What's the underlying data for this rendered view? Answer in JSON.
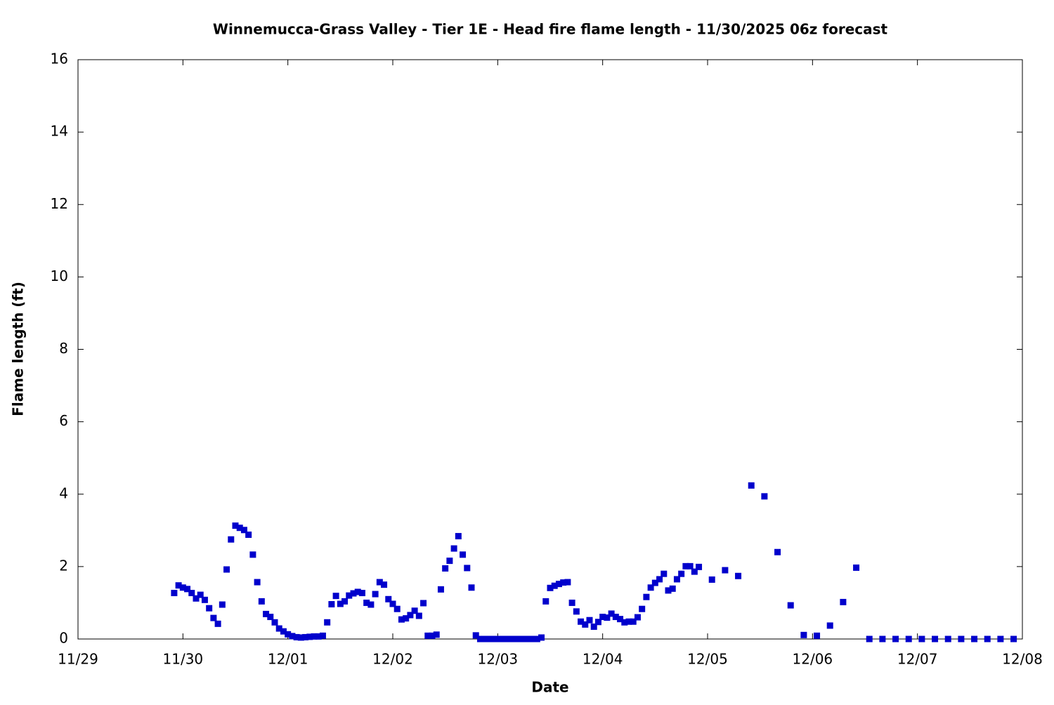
{
  "chart_data": {
    "type": "scatter",
    "title": "Winnemucca-Grass Valley - Tier 1E - Head fire flame length - 11/30/2025 06z forecast",
    "xlabel": "Date",
    "ylabel": "Flame length (ft)",
    "color": "#0000cc",
    "xlim": [
      0,
      216
    ],
    "xticks": [
      {
        "value": 0,
        "label": "11/29"
      },
      {
        "value": 24,
        "label": "11/30"
      },
      {
        "value": 48,
        "label": "12/01"
      },
      {
        "value": 72,
        "label": "12/02"
      },
      {
        "value": 96,
        "label": "12/03"
      },
      {
        "value": 120,
        "label": "12/04"
      },
      {
        "value": 144,
        "label": "12/05"
      },
      {
        "value": 168,
        "label": "12/06"
      },
      {
        "value": 192,
        "label": "12/07"
      },
      {
        "value": 216,
        "label": "12/08"
      }
    ],
    "ylim": [
      0,
      16
    ],
    "yticks": [
      0,
      2,
      4,
      6,
      8,
      10,
      12,
      14,
      16
    ],
    "x": [
      22,
      23,
      24,
      25,
      26,
      27,
      28,
      29,
      30,
      31,
      32,
      33,
      34,
      35,
      36,
      37,
      38,
      39,
      40,
      41,
      42,
      43,
      44,
      45,
      46,
      47,
      48,
      49,
      50,
      51,
      52,
      53,
      54,
      55,
      56,
      57,
      58,
      59,
      60,
      61,
      62,
      63,
      64,
      65,
      66,
      67,
      68,
      69,
      70,
      71,
      72,
      73,
      74,
      75,
      76,
      77,
      78,
      79,
      80,
      81,
      82,
      83,
      84,
      85,
      86,
      87,
      88,
      89,
      90,
      91,
      92,
      93,
      94,
      95,
      96,
      97,
      98,
      99,
      100,
      101,
      102,
      103,
      104,
      105,
      106,
      107,
      108,
      109,
      110,
      111,
      112,
      113,
      114,
      115,
      116,
      117,
      118,
      119,
      120,
      121,
      122,
      123,
      124,
      125,
      126,
      127,
      128,
      129,
      130,
      131,
      132,
      133,
      134,
      135,
      136,
      137,
      138,
      139,
      140,
      141,
      142,
      145,
      148,
      151,
      154,
      157,
      160,
      163,
      166,
      169,
      172,
      175,
      178,
      181,
      184,
      187,
      190,
      193,
      196,
      199,
      202,
      205,
      208,
      211,
      214
    ],
    "values": [
      1.27,
      1.48,
      1.42,
      1.38,
      1.27,
      1.12,
      1.22,
      1.08,
      0.85,
      0.58,
      0.42,
      0.95,
      1.92,
      2.75,
      3.13,
      3.07,
      3.01,
      2.88,
      2.33,
      1.57,
      1.04,
      0.69,
      0.61,
      0.46,
      0.29,
      0.21,
      0.13,
      0.08,
      0.05,
      0.04,
      0.05,
      0.06,
      0.07,
      0.07,
      0.09,
      0.46,
      0.96,
      1.19,
      0.97,
      1.04,
      1.2,
      1.26,
      1.3,
      1.27,
      1.0,
      0.95,
      1.24,
      1.57,
      1.5,
      1.1,
      0.97,
      0.83,
      0.54,
      0.57,
      0.66,
      0.78,
      0.64,
      0.99,
      0.09,
      0.09,
      0.12,
      1.37,
      1.95,
      2.16,
      2.5,
      2.84,
      2.33,
      1.96,
      1.42,
      0.1,
      0,
      0,
      0,
      0,
      0,
      0,
      0,
      0,
      0,
      0,
      0,
      0,
      0,
      0,
      0.04,
      1.04,
      1.41,
      1.47,
      1.52,
      1.56,
      1.57,
      1.0,
      0.76,
      0.48,
      0.4,
      0.52,
      0.34,
      0.47,
      0.61,
      0.59,
      0.7,
      0.61,
      0.55,
      0.46,
      0.48,
      0.48,
      0.6,
      0.83,
      1.16,
      1.42,
      1.55,
      1.65,
      1.8,
      1.34,
      1.39,
      1.65,
      1.8,
      2.01,
      2.01,
      1.86,
      1.99,
      1.64,
      1.9,
      1.74,
      4.24,
      3.94,
      2.4,
      0.93,
      0.11,
      0.09,
      0.37,
      1.02,
      1.97,
      0,
      0,
      0,
      0,
      0,
      0,
      0,
      0,
      0,
      0,
      0,
      0
    ]
  }
}
